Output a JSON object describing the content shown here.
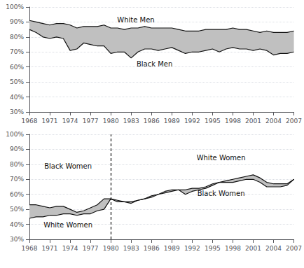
{
  "chart_data": [
    {
      "type": "line",
      "x": [
        1968,
        1969,
        1970,
        1971,
        1972,
        1973,
        1974,
        1975,
        1976,
        1977,
        1978,
        1979,
        1980,
        1981,
        1982,
        1983,
        1984,
        1985,
        1986,
        1987,
        1988,
        1989,
        1990,
        1991,
        1992,
        1993,
        1994,
        1995,
        1996,
        1997,
        1998,
        1999,
        2000,
        2001,
        2002,
        2003,
        2004,
        2005,
        2006,
        2007
      ],
      "color": "#c0c0c0",
      "series": [
        {
          "name": "White Men",
          "color": "#111111",
          "values": [
            91,
            90,
            89,
            88,
            89,
            89,
            88,
            86,
            87,
            87,
            87,
            88,
            86,
            86,
            85,
            86,
            86,
            87,
            86,
            86,
            86,
            86,
            85,
            84,
            84,
            84,
            85,
            85,
            85,
            85,
            86,
            85,
            85,
            84,
            83,
            84,
            83,
            83,
            83,
            84
          ]
        },
        {
          "name": "Black Men",
          "color": "#111111",
          "values": [
            85,
            83,
            80,
            79,
            80,
            79,
            71,
            72,
            76,
            75,
            74,
            74,
            69,
            70,
            70,
            66,
            70,
            72,
            72,
            71,
            72,
            73,
            71,
            69,
            70,
            70,
            71,
            72,
            70,
            72,
            73,
            72,
            72,
            71,
            72,
            71,
            68,
            69,
            69,
            70
          ]
        }
      ],
      "annotations": [
        "White Men",
        "Black Men"
      ],
      "xlim": [
        1968,
        2007
      ],
      "xticks": [
        1968,
        1971,
        1974,
        1977,
        1980,
        1983,
        1986,
        1989,
        1992,
        1995,
        1998,
        2001,
        2004,
        2007
      ],
      "ylim": [
        30,
        100
      ],
      "yticks": [
        {
          "value": 30,
          "label": "30%"
        },
        {
          "value": 40,
          "label": "40%"
        },
        {
          "value": 50,
          "label": "50%"
        },
        {
          "value": 60,
          "label": "60%"
        },
        {
          "value": 70,
          "label": "70%"
        },
        {
          "value": 80,
          "label": "80%"
        },
        {
          "value": 90,
          "label": "90%"
        },
        {
          "value": 100,
          "label": "100%"
        }
      ],
      "grid": true
    },
    {
      "type": "line",
      "x": [
        1968,
        1969,
        1970,
        1971,
        1972,
        1973,
        1974,
        1975,
        1976,
        1977,
        1978,
        1979,
        1980,
        1981,
        1982,
        1983,
        1984,
        1985,
        1986,
        1987,
        1988,
        1989,
        1990,
        1991,
        1992,
        1993,
        1994,
        1995,
        1996,
        1997,
        1998,
        1999,
        2000,
        2001,
        2002,
        2003,
        2004,
        2005,
        2006,
        2007
      ],
      "color": "#c0c0c0",
      "series": [
        {
          "name": "White Women",
          "color": "#111111",
          "values": [
            44,
            45,
            45,
            46,
            46,
            47,
            47,
            46,
            47,
            47,
            49,
            50,
            57,
            56,
            55,
            55,
            56,
            57,
            59,
            60,
            61,
            62,
            63,
            63,
            64,
            64,
            65,
            67,
            68,
            69,
            70,
            71,
            72,
            73,
            71,
            68,
            67,
            67,
            67,
            70
          ]
        },
        {
          "name": "Black Women",
          "color": "#111111",
          "values": [
            53,
            53,
            52,
            51,
            52,
            52,
            50,
            48,
            49,
            51,
            53,
            57,
            57,
            55,
            55,
            54,
            56,
            57,
            58,
            60,
            62,
            63,
            63,
            60,
            62,
            63,
            64,
            66,
            68,
            68,
            68,
            69,
            70,
            70,
            68,
            65,
            65,
            65,
            66,
            70
          ]
        }
      ],
      "annotations": [
        "Black Women",
        "White Women",
        "White Women",
        "Black Women"
      ],
      "vline": 1980,
      "xlim": [
        1968,
        2007
      ],
      "xticks": [
        1968,
        1971,
        1974,
        1977,
        1980,
        1983,
        1986,
        1989,
        1992,
        1995,
        1998,
        2001,
        2004,
        2007
      ],
      "ylim": [
        30,
        100
      ],
      "yticks": [
        {
          "value": 30,
          "label": "30%"
        },
        {
          "value": 40,
          "label": "40%"
        },
        {
          "value": 50,
          "label": "50%"
        },
        {
          "value": 60,
          "label": "60%"
        },
        {
          "value": 70,
          "label": "70%"
        },
        {
          "value": 80,
          "label": "80%"
        },
        {
          "value": 90,
          "label": "90%"
        },
        {
          "value": 100,
          "label": "100%"
        }
      ],
      "grid": true
    }
  ]
}
